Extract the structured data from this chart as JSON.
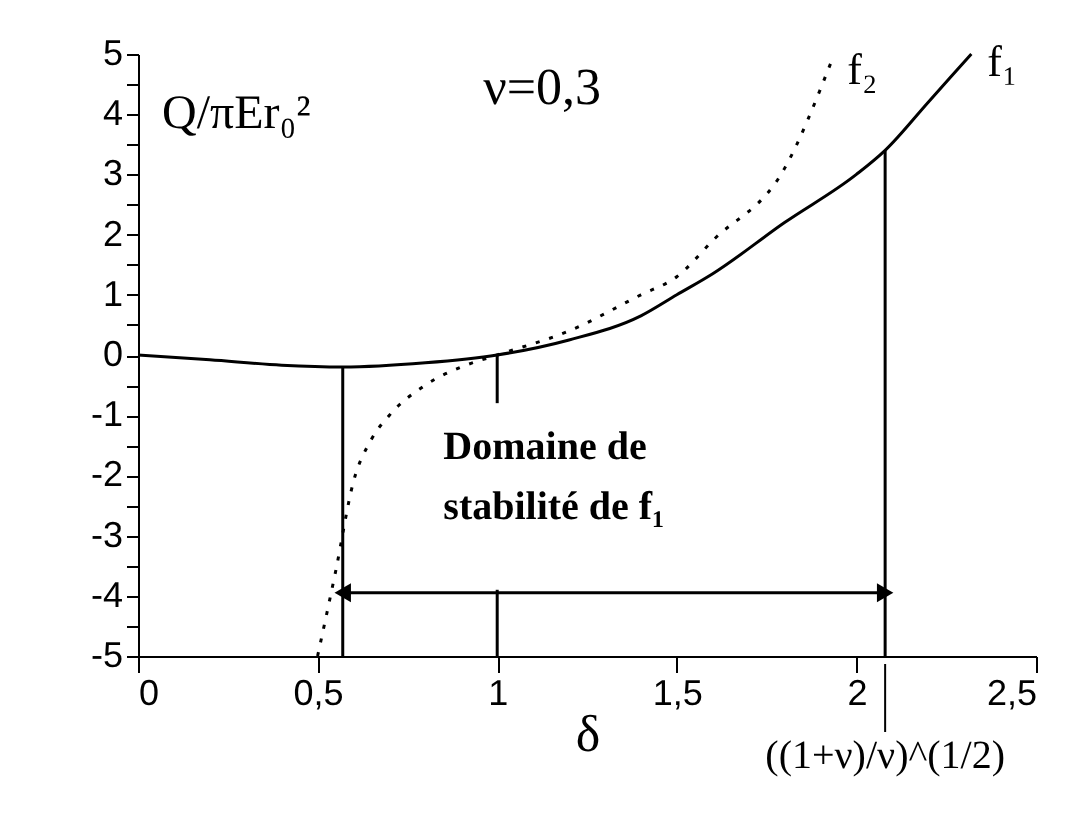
{
  "chart_data": {
    "type": "line",
    "xlabel": "δ",
    "ylabel": "Q/πEr₀²",
    "annotations": [
      "ν=0,3",
      "Domaine de stabilité de f₁",
      {
        "text": "((1+ν)/ν)^(1/2)",
        "x": 2.08
      }
    ],
    "xlim": [
      0,
      2.5
    ],
    "ylim": [
      -5,
      5
    ],
    "xticks": [
      0,
      {
        "value": 0.5,
        "label": "0,5"
      },
      1,
      {
        "value": 1.5,
        "label": "1,5"
      },
      2,
      {
        "value": 2.5,
        "label": "2,5"
      }
    ],
    "yticks": [
      -5,
      {
        "value": -4.5,
        "label": null
      },
      -4,
      {
        "value": -3.5,
        "label": null
      },
      -3,
      {
        "value": -2.5,
        "label": null
      },
      -2,
      {
        "value": -1.5,
        "label": null
      },
      -1,
      {
        "value": -0.5,
        "label": null
      },
      0,
      {
        "value": 0.5,
        "label": null
      },
      1,
      {
        "value": 1.5,
        "label": null
      },
      2,
      {
        "value": 2.5,
        "label": null
      },
      3,
      {
        "value": 3.5,
        "label": null
      },
      4,
      {
        "value": 4.5,
        "label": null
      },
      5
    ],
    "grid": false,
    "legend": false,
    "marker": "none",
    "series": [
      {
        "name": "f₁",
        "color": "#000000",
        "line_style": "solid",
        "x": [
          0,
          0.2,
          0.4,
          0.57,
          0.8,
          1,
          1.2,
          1.4,
          1.5,
          1.6,
          1.8,
          2.0,
          2.08,
          2.2,
          2.32
        ],
        "values": [
          0,
          -0.08,
          -0.17,
          -0.2,
          -0.13,
          0,
          0.25,
          0.65,
          1.0,
          1.35,
          2.2,
          3.0,
          3.4,
          4.2,
          5.0
        ]
      },
      {
        "name": "f₂",
        "color": "#000000",
        "line_style": "dotted",
        "x": [
          0.5,
          0.55,
          0.6,
          0.65,
          0.7,
          0.8,
          0.9,
          1,
          1.2,
          1.4,
          1.5,
          1.6,
          1.8,
          1.93
        ],
        "values": [
          -5,
          -3.6,
          -2.1,
          -1.4,
          -1.0,
          -0.5,
          -0.2,
          0,
          0.4,
          1.0,
          1.3,
          1.9,
          3.1,
          4.87
        ]
      },
      {
        "color": "#000000",
        "line_style": "solid",
        "x": [
          0.57,
          0.57
        ],
        "values": [
          -5,
          -0.2
        ]
      },
      {
        "color": "#000000",
        "line_style": "solid",
        "x": [
          1,
          1
        ],
        "values": [
          -5,
          -3.9
        ]
      },
      {
        "color": "#000000",
        "line_style": "solid",
        "x": [
          1,
          1
        ],
        "values": [
          -0.8,
          0
        ]
      },
      {
        "color": "#000000",
        "line_style": "solid",
        "x": [
          2.08,
          2.08
        ],
        "values": [
          -5,
          3.4
        ]
      }
    ]
  }
}
